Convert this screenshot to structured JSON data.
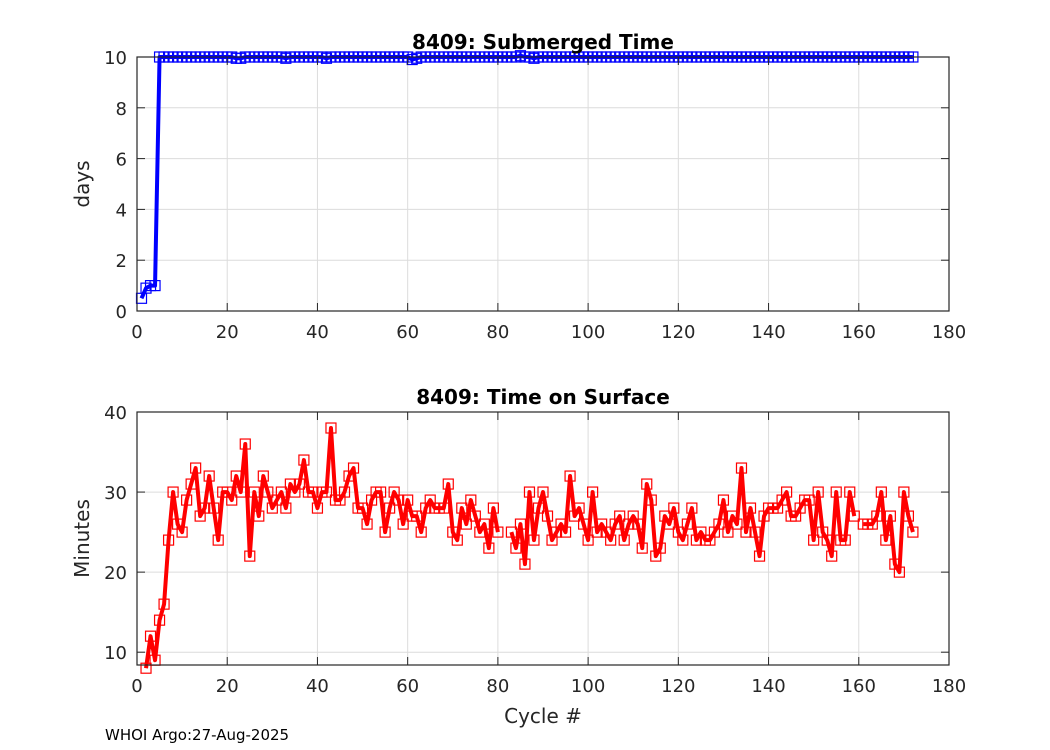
{
  "chart_data": [
    {
      "type": "line",
      "title": "8409: Submerged Time",
      "xlabel": "",
      "ylabel": "days",
      "xlim": [
        0,
        180
      ],
      "ylim": [
        0,
        10
      ],
      "xticks": [
        0,
        20,
        40,
        60,
        80,
        100,
        120,
        140,
        160,
        180
      ],
      "yticks": [
        0,
        2,
        4,
        6,
        8,
        10
      ],
      "grid": true,
      "color": "#0000ff",
      "marker": "square",
      "series": [
        {
          "name": "Submerged Time",
          "x_start": 1,
          "values": [
            0.5,
            0.9,
            1,
            1,
            10,
            10,
            10,
            10,
            10,
            10,
            10,
            10,
            10,
            10,
            10,
            10,
            10,
            10,
            10,
            10,
            10,
            9.95,
            9.95,
            10,
            10,
            10,
            10,
            10,
            10,
            10,
            10,
            10,
            9.95,
            10,
            10,
            10,
            10,
            10,
            10,
            10,
            10,
            9.95,
            10,
            10,
            10,
            10,
            10,
            10,
            10,
            10,
            10,
            10,
            10,
            10,
            10,
            10,
            10,
            10,
            10,
            10,
            9.9,
            9.95,
            10,
            10,
            10,
            10,
            10,
            10,
            10,
            10,
            10,
            10,
            10,
            10,
            10,
            10,
            10,
            10,
            10,
            10,
            10,
            10,
            10,
            10,
            10.05,
            10,
            10,
            9.95,
            10,
            10,
            10,
            10,
            10,
            10,
            10,
            10,
            10,
            10,
            10,
            10,
            10,
            10,
            10,
            10,
            10,
            10,
            10,
            10,
            10,
            10,
            10,
            10,
            10,
            10,
            10,
            10,
            10,
            10,
            10,
            10,
            10,
            10,
            10,
            10,
            10,
            10,
            10,
            10,
            10,
            10,
            10,
            10,
            10,
            10,
            10,
            10,
            10,
            10,
            10,
            10,
            10,
            10,
            10,
            10,
            10,
            10,
            10,
            10,
            10,
            10,
            10,
            10,
            10,
            10,
            10,
            10,
            10,
            10,
            10,
            10,
            10,
            10,
            10,
            10,
            10,
            10,
            10,
            10,
            10,
            10,
            10,
            10
          ]
        }
      ]
    },
    {
      "type": "line",
      "title": "8409: Time on Surface",
      "xlabel": "Cycle #",
      "ylabel": "Minutes",
      "xlim": [
        0,
        180
      ],
      "ylim": [
        8.4,
        40
      ],
      "xticks": [
        0,
        20,
        40,
        60,
        80,
        100,
        120,
        140,
        160,
        180
      ],
      "yticks": [
        10,
        20,
        30,
        40
      ],
      "grid": true,
      "color": "#ff0000",
      "marker": "square",
      "series": [
        {
          "name": "Time on Surface",
          "x_start": 2,
          "values": [
            8,
            12,
            9,
            14,
            16,
            24,
            30,
            26,
            25,
            29,
            31,
            33,
            27,
            28,
            32,
            28,
            24,
            30,
            30,
            29,
            32,
            30,
            36,
            22,
            30,
            27,
            32,
            30,
            28,
            29,
            30,
            28,
            31,
            30,
            31,
            34,
            30,
            30,
            28,
            30,
            30,
            38,
            29,
            29,
            30,
            32,
            33,
            28,
            28,
            26,
            29,
            30,
            30,
            25,
            28,
            30,
            29,
            26,
            29,
            27,
            27,
            25,
            28,
            29,
            28,
            28,
            28,
            31,
            25,
            24,
            28,
            26,
            29,
            27,
            25,
            26,
            23,
            28,
            25,
            null,
            null,
            25,
            23,
            26,
            21,
            30,
            24,
            28,
            30,
            27,
            24,
            25,
            26,
            25,
            32,
            27,
            28,
            26,
            24,
            30,
            25,
            26,
            25,
            24,
            26,
            27,
            24,
            26,
            27,
            26,
            23,
            31,
            29,
            22,
            23,
            27,
            26,
            28,
            25,
            24,
            26,
            28,
            24,
            25,
            24,
            24,
            25,
            26,
            29,
            25,
            27,
            26,
            33,
            25,
            28,
            25,
            22,
            27,
            28,
            28,
            28,
            29,
            30,
            27,
            27,
            28,
            29,
            29,
            24,
            30,
            25,
            24,
            22,
            30,
            24,
            24,
            30,
            27,
            null,
            26,
            26,
            26,
            27,
            30,
            24,
            27,
            21,
            20,
            30,
            27,
            25
          ]
        }
      ]
    }
  ],
  "footer": "WHOI Argo:27-Aug-2025"
}
